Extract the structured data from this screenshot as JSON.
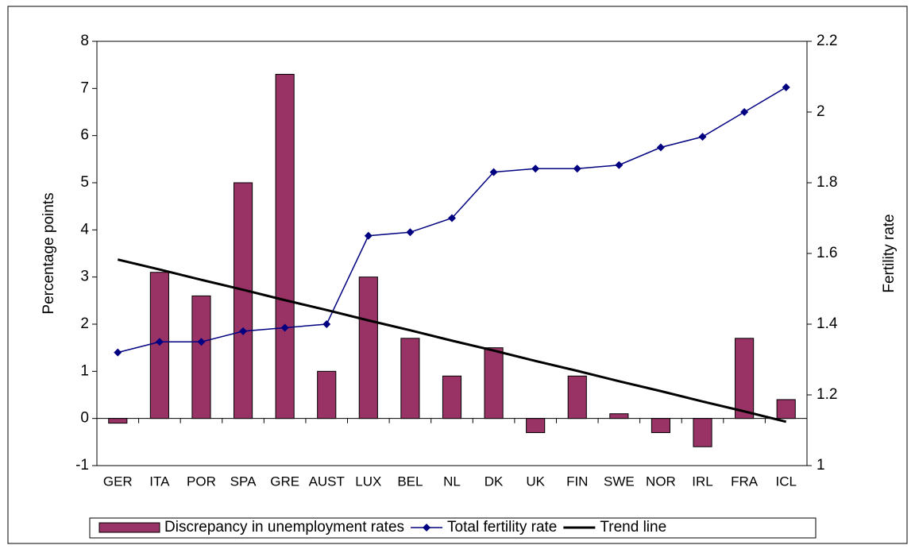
{
  "chart_data": {
    "type": "bar",
    "y_label": "Percentage points",
    "y2_label": "Fertility rate",
    "categories": [
      "GER",
      "ITA",
      "POR",
      "SPA",
      "GRE",
      "AUST",
      "LUX",
      "BEL",
      "NL",
      "DK",
      "UK",
      "FIN",
      "SWE",
      "NOR",
      "IRL",
      "FRA",
      "ICL"
    ],
    "series": [
      {
        "name": "Discrepancy in unemployment rates",
        "type": "bar",
        "color": "#993366",
        "values": [
          -0.1,
          3.1,
          2.6,
          5.0,
          7.3,
          1.0,
          3.0,
          1.7,
          0.9,
          1.5,
          -0.3,
          0.9,
          0.1,
          -0.3,
          -0.6,
          1.7,
          0.4
        ]
      },
      {
        "name": "Total fertility rate",
        "type": "line",
        "axis": "y2",
        "color": "#000080",
        "marker": "diamond",
        "values": [
          1.32,
          1.35,
          1.35,
          1.38,
          1.39,
          1.4,
          1.65,
          1.66,
          1.7,
          1.83,
          1.84,
          1.84,
          1.85,
          1.9,
          1.93,
          2.0,
          2.07
        ]
      },
      {
        "name": "Trend line",
        "type": "line",
        "color": "#000000",
        "values": [
          3.37,
          3.16,
          2.94,
          2.73,
          2.51,
          2.3,
          2.08,
          1.87,
          1.65,
          1.44,
          1.22,
          1.01,
          0.79,
          0.58,
          0.36,
          0.15,
          -0.07
        ]
      }
    ],
    "ylim": [
      -1,
      8
    ],
    "yticks": [
      -1,
      0,
      1,
      2,
      3,
      4,
      5,
      6,
      7,
      8
    ],
    "y2lim": [
      1,
      2.2
    ],
    "y2ticks": [
      1,
      1.2,
      1.4,
      1.6,
      1.8,
      2,
      2.2
    ],
    "legend": "bottom"
  }
}
